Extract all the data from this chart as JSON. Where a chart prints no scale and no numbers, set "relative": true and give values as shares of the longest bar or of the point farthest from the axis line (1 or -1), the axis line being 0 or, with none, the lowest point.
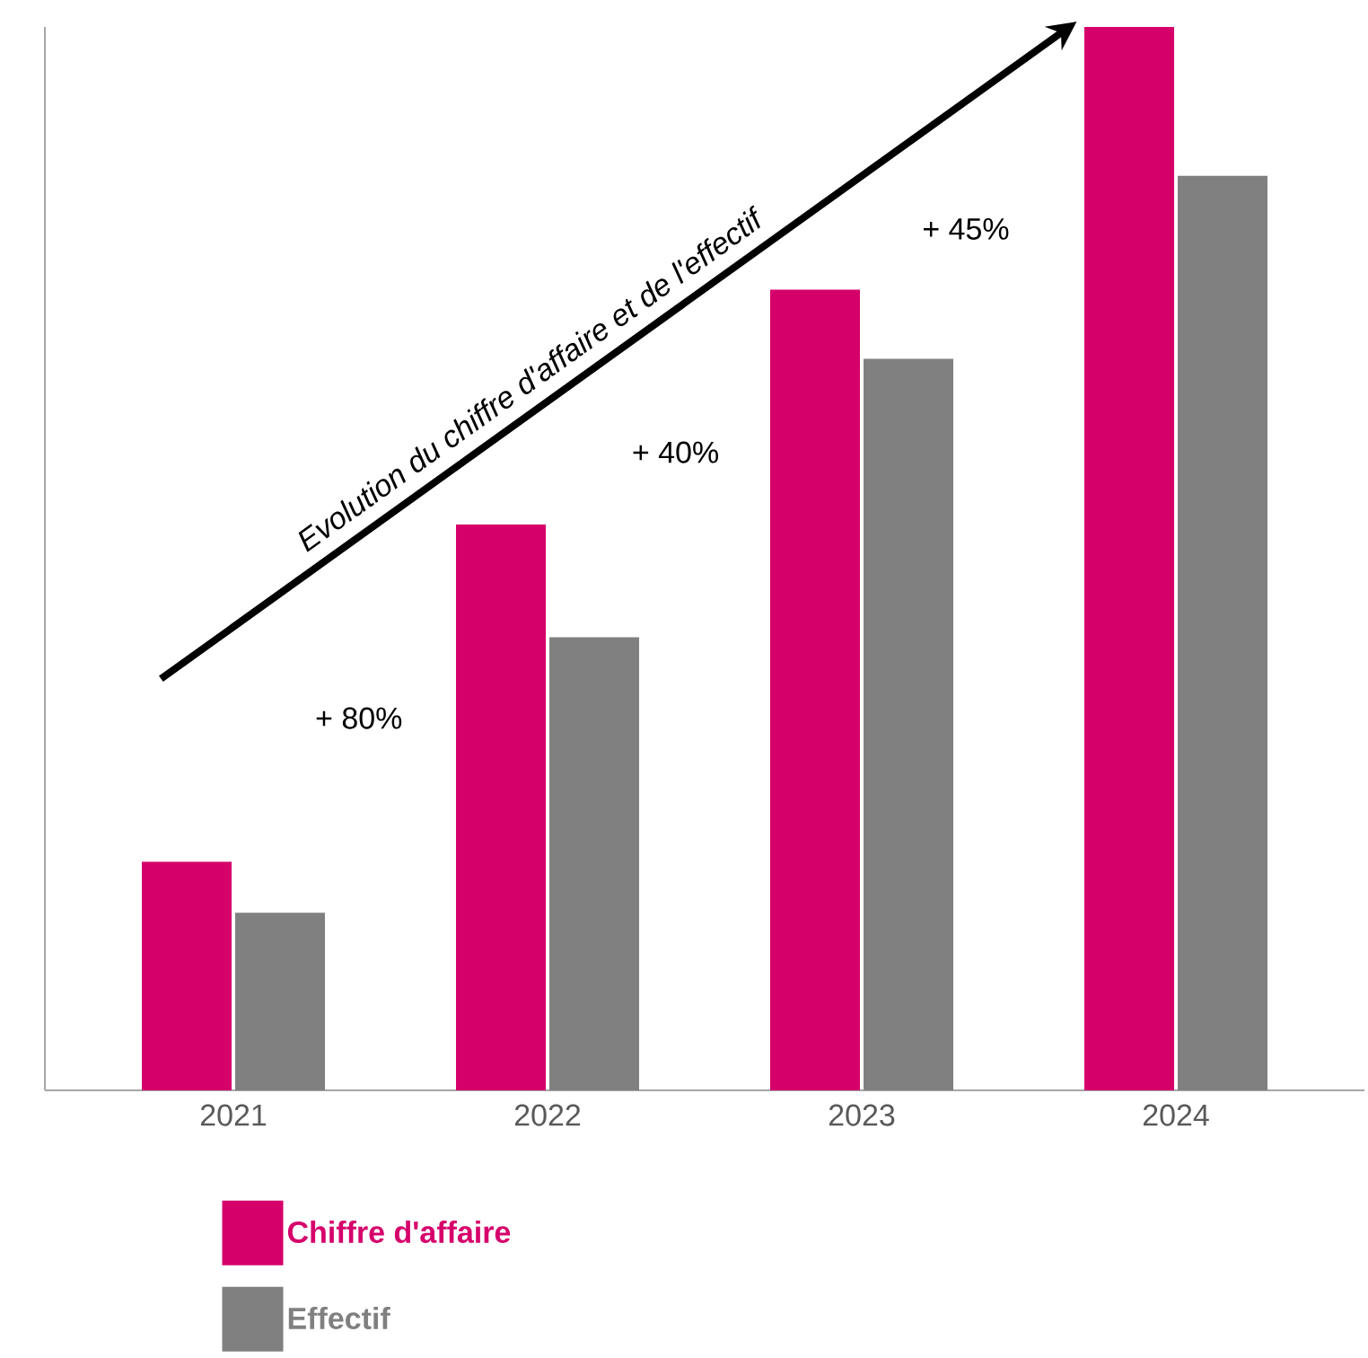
{
  "chart_data": {
    "type": "bar",
    "relative": true,
    "categories": [
      "2021",
      "2022",
      "2023",
      "2024"
    ],
    "series": [
      {
        "name": "Chiffre d'affaire",
        "color": "#d6006b",
        "values": [
          0.215,
          0.532,
          0.753,
          1
        ]
      },
      {
        "name": "Effectif",
        "color": "#808080",
        "values": [
          0.167,
          0.426,
          0.688,
          0.86
        ]
      }
    ],
    "annotations": [
      "Evolution du chiffre d'affaire et de l'effectif",
      "+ 80%",
      "+ 40%",
      "+ 45%"
    ],
    "legend": "bottom left",
    "grid": false
  }
}
